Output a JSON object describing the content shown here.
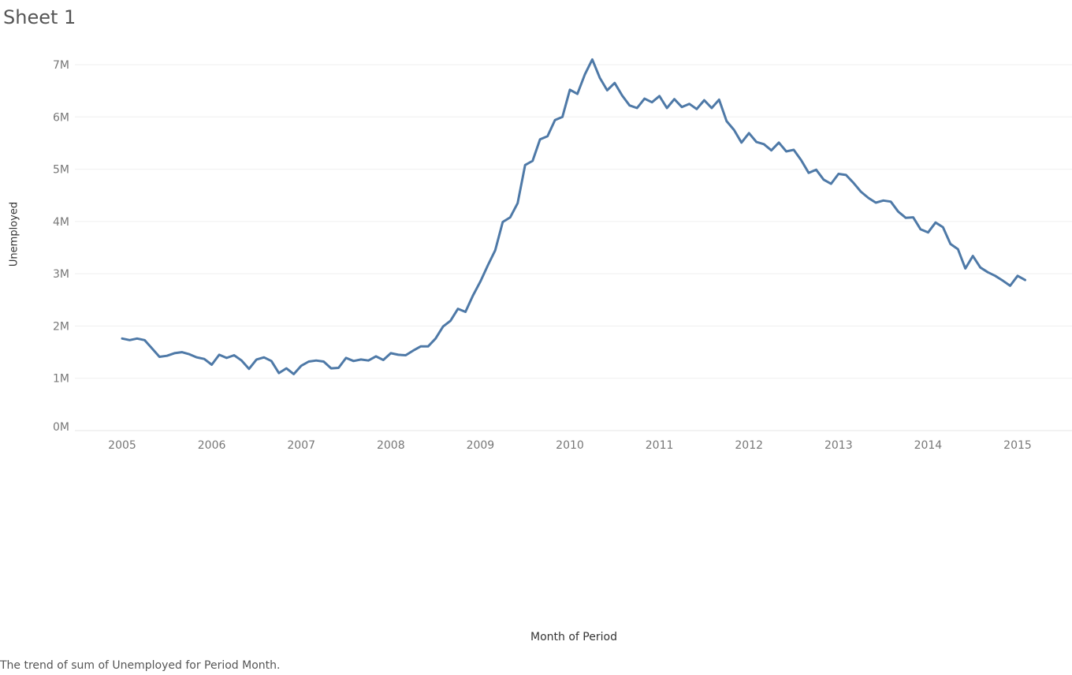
{
  "sheet": {
    "title": "Sheet 1"
  },
  "caption": "The trend of sum of Unemployed for Period Month.",
  "chart_data": {
    "type": "line",
    "xlabel": "Month of Period",
    "ylabel": "Unemployed",
    "ylim": [
      0,
      7000000
    ],
    "yticks": [
      {
        "value": 0,
        "label": "0M"
      },
      {
        "value": 1000000,
        "label": "1M"
      },
      {
        "value": 2000000,
        "label": "2M"
      },
      {
        "value": 3000000,
        "label": "3M"
      },
      {
        "value": 4000000,
        "label": "4M"
      },
      {
        "value": 5000000,
        "label": "5M"
      },
      {
        "value": 6000000,
        "label": "6M"
      },
      {
        "value": 7000000,
        "label": "7M"
      }
    ],
    "xticks": [
      "2005",
      "2006",
      "2007",
      "2008",
      "2009",
      "2010",
      "2011",
      "2012",
      "2013",
      "2014",
      "2015"
    ],
    "grid": "horizontal",
    "line_color": "#4e79a7",
    "series": [
      {
        "x": [
          "2005-01",
          "2005-02",
          "2005-03",
          "2005-04",
          "2005-05",
          "2005-06",
          "2005-07",
          "2005-08",
          "2005-09",
          "2005-10",
          "2005-11",
          "2005-12",
          "2006-01",
          "2006-02",
          "2006-03",
          "2006-04",
          "2006-05",
          "2006-06",
          "2006-07",
          "2006-08",
          "2006-09",
          "2006-10",
          "2006-11",
          "2006-12",
          "2007-01",
          "2007-02",
          "2007-03",
          "2007-04",
          "2007-05",
          "2007-06",
          "2007-07",
          "2007-08",
          "2007-09",
          "2007-10",
          "2007-11",
          "2007-12",
          "2008-01",
          "2008-02",
          "2008-03",
          "2008-04",
          "2008-05",
          "2008-06",
          "2008-07",
          "2008-08",
          "2008-09",
          "2008-10",
          "2008-11",
          "2008-12",
          "2009-01",
          "2009-02",
          "2009-03",
          "2009-04",
          "2009-05",
          "2009-06",
          "2009-07",
          "2009-08",
          "2009-09",
          "2009-10",
          "2009-11",
          "2009-12",
          "2010-01",
          "2010-02",
          "2010-03",
          "2010-04",
          "2010-05",
          "2010-06",
          "2010-07",
          "2010-08",
          "2010-09",
          "2010-10",
          "2010-11",
          "2010-12",
          "2011-01",
          "2011-02",
          "2011-03",
          "2011-04",
          "2011-05",
          "2011-06",
          "2011-07",
          "2011-08",
          "2011-09",
          "2011-10",
          "2011-11",
          "2011-12",
          "2012-01",
          "2012-02",
          "2012-03",
          "2012-04",
          "2012-05",
          "2012-06",
          "2012-07",
          "2012-08",
          "2012-09",
          "2012-10",
          "2012-11",
          "2012-12",
          "2013-01",
          "2013-02",
          "2013-03",
          "2013-04",
          "2013-05",
          "2013-06",
          "2013-07",
          "2013-08",
          "2013-09",
          "2013-10",
          "2013-11",
          "2013-12",
          "2014-01",
          "2014-02",
          "2014-03",
          "2014-04",
          "2014-05",
          "2014-06",
          "2014-07",
          "2014-08",
          "2014-09",
          "2014-10",
          "2014-11",
          "2014-12",
          "2015-01",
          "2015-02"
        ],
        "y": [
          1760000,
          1730000,
          1760000,
          1730000,
          1570000,
          1410000,
          1430000,
          1480000,
          1500000,
          1460000,
          1400000,
          1370000,
          1260000,
          1450000,
          1390000,
          1440000,
          1340000,
          1180000,
          1360000,
          1400000,
          1330000,
          1100000,
          1190000,
          1080000,
          1240000,
          1320000,
          1340000,
          1320000,
          1190000,
          1200000,
          1390000,
          1330000,
          1360000,
          1340000,
          1420000,
          1350000,
          1480000,
          1450000,
          1440000,
          1530000,
          1610000,
          1610000,
          1760000,
          1990000,
          2100000,
          2330000,
          2270000,
          2580000,
          2850000,
          3160000,
          3450000,
          3990000,
          4080000,
          4350000,
          5080000,
          5160000,
          5570000,
          5630000,
          5940000,
          6000000,
          6520000,
          6440000,
          6810000,
          7100000,
          6750000,
          6510000,
          6650000,
          6410000,
          6220000,
          6170000,
          6350000,
          6280000,
          6400000,
          6170000,
          6340000,
          6190000,
          6250000,
          6150000,
          6320000,
          6170000,
          6330000,
          5920000,
          5750000,
          5510000,
          5690000,
          5520000,
          5480000,
          5360000,
          5510000,
          5340000,
          5370000,
          5170000,
          4930000,
          4990000,
          4800000,
          4720000,
          4910000,
          4890000,
          4740000,
          4570000,
          4450000,
          4360000,
          4400000,
          4380000,
          4190000,
          4070000,
          4080000,
          3850000,
          3790000,
          3980000,
          3890000,
          3570000,
          3470000,
          3100000,
          3340000,
          3120000,
          3030000,
          2960000,
          2870000,
          2770000,
          2960000,
          2880000
        ]
      }
    ]
  }
}
